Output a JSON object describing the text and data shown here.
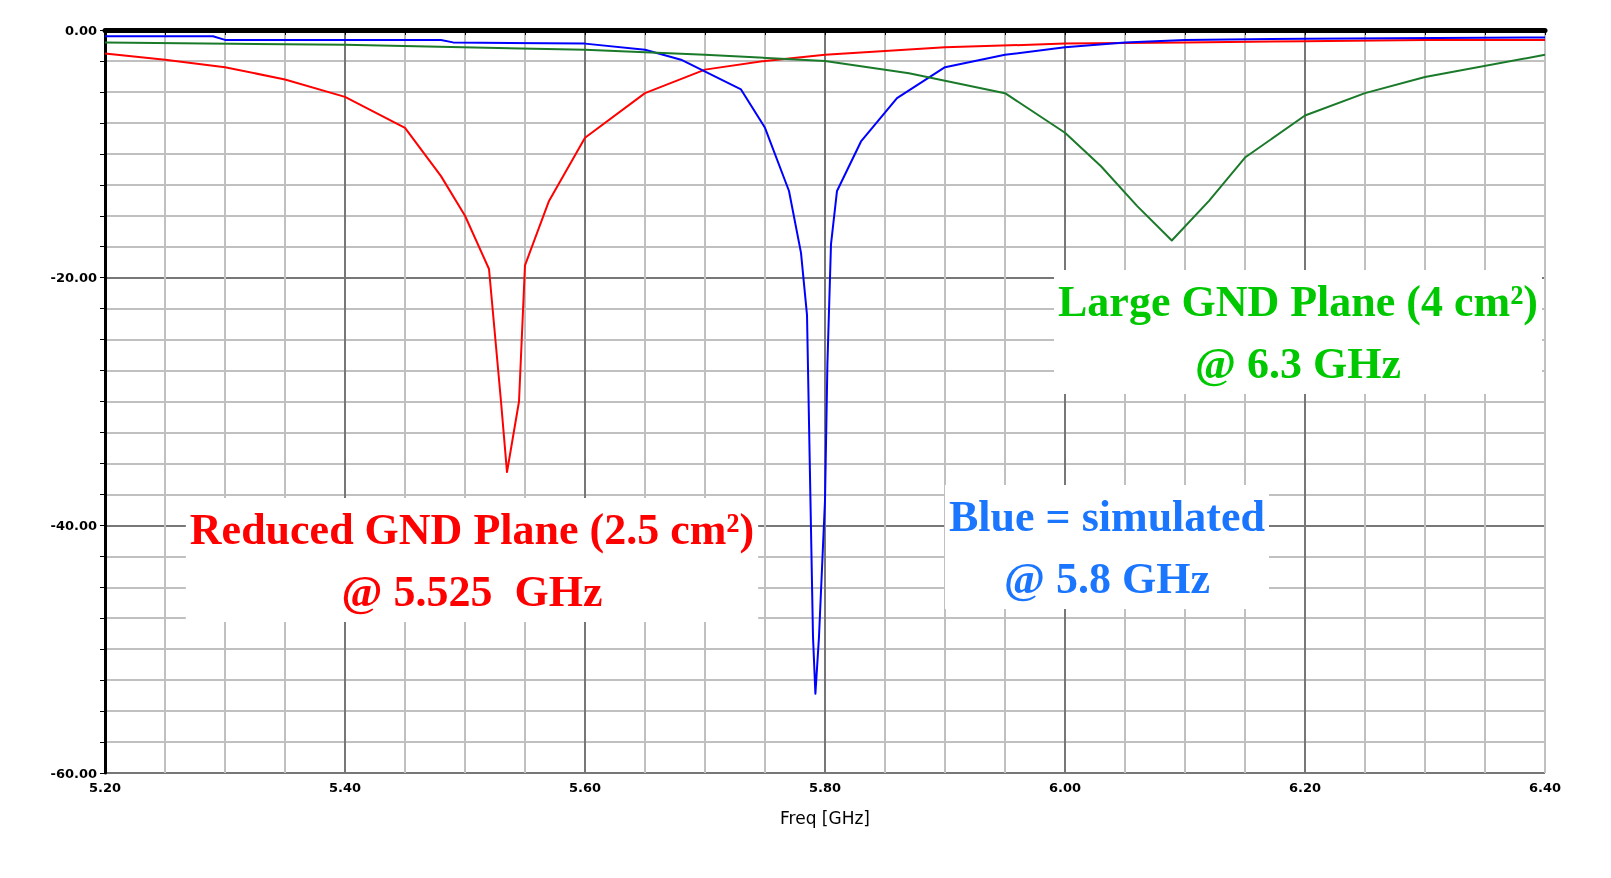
{
  "chart_data": {
    "type": "line",
    "xlabel": "Freq [GHz]",
    "grid": true,
    "marker": "none",
    "line_style": "solid",
    "xlim": [
      5.2,
      6.4
    ],
    "xticks": [
      {
        "value": 5.2,
        "label": "5.20"
      },
      {
        "value": 5.25,
        "label": null
      },
      {
        "value": 5.3,
        "label": null
      },
      {
        "value": 5.35,
        "label": null
      },
      {
        "value": 5.4,
        "label": "5.40"
      },
      {
        "value": 5.45,
        "label": null
      },
      {
        "value": 5.5,
        "label": null
      },
      {
        "value": 5.55,
        "label": null
      },
      {
        "value": 5.6,
        "label": "5.60"
      },
      {
        "value": 5.65,
        "label": null
      },
      {
        "value": 5.7,
        "label": null
      },
      {
        "value": 5.75,
        "label": null
      },
      {
        "value": 5.8,
        "label": "5.80"
      },
      {
        "value": 5.85,
        "label": null
      },
      {
        "value": 5.9,
        "label": null
      },
      {
        "value": 5.95,
        "label": null
      },
      {
        "value": 6.0,
        "label": "6.00"
      },
      {
        "value": 6.05,
        "label": null
      },
      {
        "value": 6.1,
        "label": null
      },
      {
        "value": 6.15,
        "label": null
      },
      {
        "value": 6.2,
        "label": "6.20"
      },
      {
        "value": 6.25,
        "label": null
      },
      {
        "value": 6.3,
        "label": null
      },
      {
        "value": 6.35,
        "label": null
      },
      {
        "value": 6.4,
        "label": "6.40"
      }
    ],
    "ylim": [
      -60,
      0
    ],
    "yticks": [
      {
        "value": -60,
        "label": "-60.00"
      },
      {
        "value": -57.5,
        "label": null
      },
      {
        "value": -55,
        "label": null
      },
      {
        "value": -52.5,
        "label": null
      },
      {
        "value": -50,
        "label": null
      },
      {
        "value": -47.5,
        "label": null
      },
      {
        "value": -45,
        "label": null
      },
      {
        "value": -42.5,
        "label": null
      },
      {
        "value": -40,
        "label": "-40.00"
      },
      {
        "value": -37.5,
        "label": null
      },
      {
        "value": -35,
        "label": null
      },
      {
        "value": -32.5,
        "label": null
      },
      {
        "value": -30,
        "label": null
      },
      {
        "value": -27.5,
        "label": null
      },
      {
        "value": -25,
        "label": null
      },
      {
        "value": -22.5,
        "label": null
      },
      {
        "value": -20,
        "label": "-20.00"
      },
      {
        "value": -17.5,
        "label": null
      },
      {
        "value": -15,
        "label": null
      },
      {
        "value": -12.5,
        "label": null
      },
      {
        "value": -10,
        "label": null
      },
      {
        "value": -7.5,
        "label": null
      },
      {
        "value": -5,
        "label": null
      },
      {
        "value": -2.5,
        "label": null
      },
      {
        "value": 0,
        "label": "0.00"
      }
    ],
    "series": [
      {
        "color": "#ff0000",
        "x": [
          5.2,
          5.25,
          5.3,
          5.35,
          5.4,
          5.45,
          5.48,
          5.5,
          5.52,
          5.53,
          5.535,
          5.545,
          5.55,
          5.57,
          5.6,
          5.65,
          5.7,
          5.75,
          5.8,
          5.9,
          6.0,
          6.1,
          6.2,
          6.3,
          6.4
        ],
        "values": [
          -1.9,
          -2.4,
          -3.0,
          -4.0,
          -5.4,
          -7.9,
          -11.8,
          -15,
          -19.3,
          -30,
          -35.7,
          -30,
          -19,
          -13.8,
          -8.7,
          -5.1,
          -3.2,
          -2.5,
          -2.0,
          -1.4,
          -1.1,
          -1.0,
          -0.9,
          -0.8,
          -0.8
        ]
      },
      {
        "color": "#0000ff",
        "x": [
          5.2,
          5.29,
          5.3,
          5.48,
          5.49,
          5.6,
          5.65,
          5.68,
          5.73,
          5.75,
          5.77,
          5.78,
          5.785,
          5.79,
          5.792,
          5.795,
          5.8,
          5.802,
          5.805,
          5.81,
          5.83,
          5.86,
          5.9,
          5.95,
          6.0,
          6.05,
          6.1,
          6.2,
          6.4
        ],
        "values": [
          -0.5,
          -0.5,
          -0.8,
          -0.8,
          -1.0,
          -1.1,
          -1.6,
          -2.4,
          -4.8,
          -7.9,
          -13,
          -18,
          -23,
          -49,
          -53.6,
          -49,
          -38,
          -27,
          -17.3,
          -13,
          -9,
          -5.5,
          -3,
          -2,
          -1.4,
          -1.0,
          -0.8,
          -0.7,
          -0.6
        ]
      },
      {
        "color": "#1a7a2a",
        "x": [
          5.2,
          5.4,
          5.6,
          5.7,
          5.8,
          5.87,
          5.95,
          6.0,
          6.03,
          6.06,
          6.089,
          6.12,
          6.15,
          6.2,
          6.25,
          6.3,
          6.4
        ],
        "values": [
          -1.0,
          -1.2,
          -1.6,
          -2.0,
          -2.5,
          -3.5,
          -5.1,
          -8.3,
          -11,
          -14.2,
          -17.0,
          -13.8,
          -10.3,
          -6.9,
          -5.1,
          -3.8,
          -2.0
        ]
      }
    ],
    "annotations": [
      "Reduced GND Plane (2.5 cm²)\n@ 5.525  GHz",
      "Blue = simulated\n@ 5.8 GHz",
      "Large GND Plane (4 cm²)\n@ 6.3 GHz"
    ]
  }
}
